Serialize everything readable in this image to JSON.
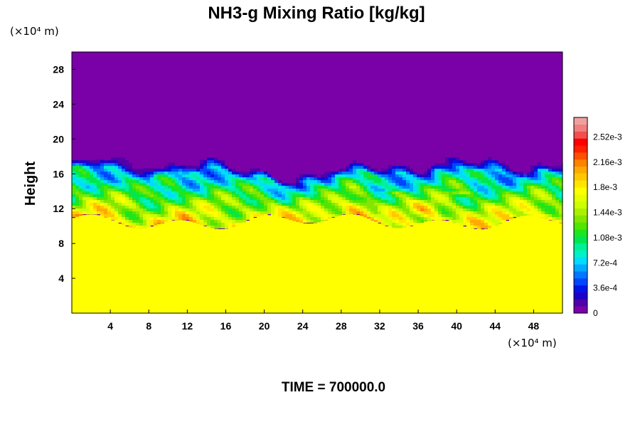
{
  "chart_data": {
    "type": "heatmap",
    "title": "NH3-g Mixing Ratio [kg/kg]",
    "ylabel": "Height",
    "xunit": "(×10⁴ m)",
    "yunit": "(×10⁴ m)",
    "xlim": [
      0,
      51
    ],
    "ylim": [
      0,
      30
    ],
    "xticks": [
      "4",
      "8",
      "12",
      "16",
      "20",
      "24",
      "28",
      "32",
      "36",
      "40",
      "44",
      "48"
    ],
    "yticks": [
      "4",
      "8",
      "12",
      "16",
      "20",
      "24",
      "28"
    ],
    "colorbar": {
      "labels": [
        "0",
        "3.6e-4",
        "7.2e-4",
        "1.08e-3",
        "1.44e-3",
        "1.8e-3",
        "2.16e-3",
        "2.52e-3"
      ],
      "label_values": [
        0,
        0.00036,
        0.00072,
        0.00108,
        0.00144,
        0.0018,
        0.00216,
        0.00252
      ],
      "range": [
        0,
        0.0028
      ],
      "colors": [
        "#7a00a8",
        "#5000a8",
        "#1e00c8",
        "#0014e6",
        "#0046ff",
        "#0078ff",
        "#00aaff",
        "#00dcff",
        "#00f0c8",
        "#00f096",
        "#00e650",
        "#1ee61e",
        "#50e600",
        "#82e600",
        "#aaf000",
        "#ccff00",
        "#e6ff00",
        "#ffff00",
        "#ffe600",
        "#ffc800",
        "#ffaa00",
        "#ff8200",
        "#ff5000",
        "#ff1e00",
        "#ff0000",
        "#f05050",
        "#f08080",
        "#f0a0a0"
      ]
    },
    "field_description_values": {
      "lower_layer_value": 0.00178,
      "upper_layer_value": 0.0,
      "lower_layer_top": 10.5,
      "mixing_top_mean": 17.5
    },
    "footer": "TIME = 700000.0"
  }
}
